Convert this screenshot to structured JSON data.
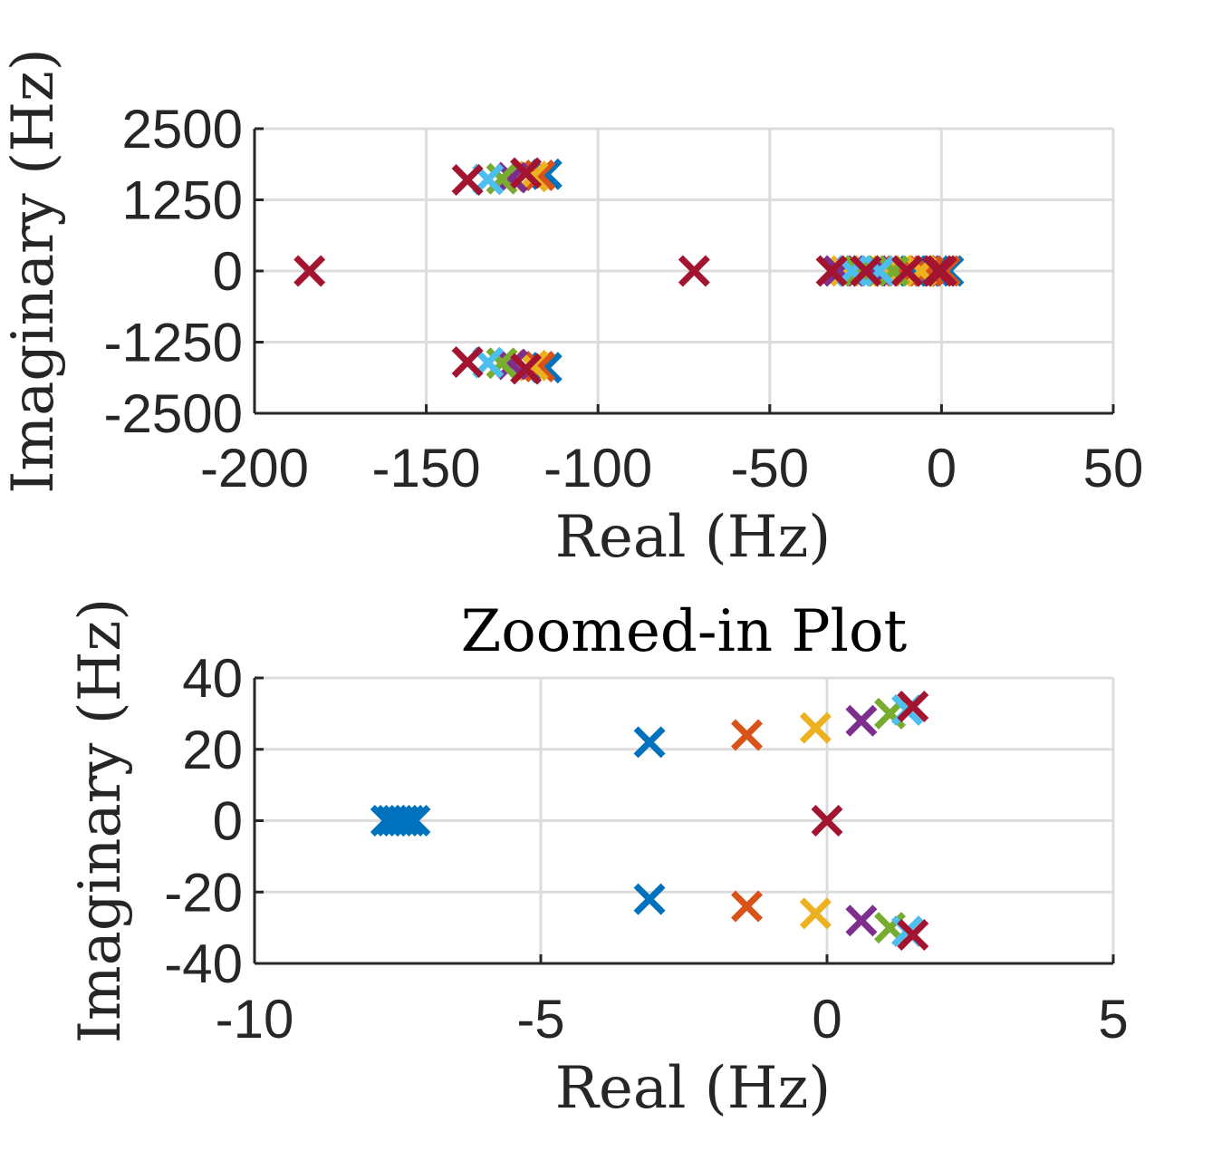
{
  "chart_data": [
    {
      "type": "scatter",
      "title": "",
      "xlabel": "Real (Hz)",
      "ylabel": "Imaginary (Hz)",
      "xlim": [
        -200,
        50
      ],
      "ylim": [
        -2500,
        2500
      ],
      "xticks": [
        -200,
        -150,
        -100,
        -50,
        0,
        50
      ],
      "xtick_labels": [
        "-200",
        "-150",
        "-100",
        "-50",
        "0",
        "50"
      ],
      "yticks": [
        -2500,
        -1250,
        0,
        1250,
        2500
      ],
      "ytick_labels": [
        "-2500",
        "-1250",
        "0",
        "1250",
        "2500"
      ],
      "grid": true,
      "marker": "x",
      "series": [
        {
          "color": "#0072BD",
          "points": [
            [
              -115,
              1700
            ],
            [
              -115,
              -1700
            ],
            [
              -8,
              0
            ],
            [
              -6,
              0
            ],
            [
              -4,
              0
            ],
            [
              -2,
              0
            ],
            [
              0,
              0
            ],
            [
              2,
              0
            ],
            [
              -22,
              0
            ],
            [
              -26,
              0
            ]
          ]
        },
        {
          "color": "#D95319",
          "points": [
            [
              -117,
              1680
            ],
            [
              -117,
              -1680
            ],
            [
              -12,
              0
            ],
            [
              -4,
              0
            ],
            [
              1,
              0
            ],
            [
              -24,
              0
            ]
          ]
        },
        {
          "color": "#EDB120",
          "points": [
            [
              -119,
              1660
            ],
            [
              -119,
              -1660
            ],
            [
              -16,
              0
            ],
            [
              -6,
              0
            ],
            [
              0,
              0
            ],
            [
              -28,
              0
            ]
          ]
        },
        {
          "color": "#7E2F8E",
          "points": [
            [
              -125,
              1640
            ],
            [
              -125,
              -1640
            ],
            [
              -20,
              0
            ],
            [
              -10,
              0
            ],
            [
              -30,
              0
            ]
          ]
        },
        {
          "color": "#77AC30",
          "points": [
            [
              -128,
              1620
            ],
            [
              -128,
              -1620
            ],
            [
              -14,
              0
            ],
            [
              -24,
              0
            ]
          ]
        },
        {
          "color": "#4DBEEE",
          "points": [
            [
              -132,
              1610
            ],
            [
              -132,
              -1610
            ],
            [
              -26,
              0
            ],
            [
              -18,
              0
            ]
          ]
        },
        {
          "color": "#A2142F",
          "points": [
            [
              -138,
              1600
            ],
            [
              -138,
              -1600
            ],
            [
              -121,
              1720
            ],
            [
              -121,
              -1720
            ],
            [
              -184,
              0
            ],
            [
              -72,
              0
            ],
            [
              -32,
              0
            ],
            [
              -22,
              0
            ],
            [
              -10,
              0
            ],
            [
              -1,
              0
            ],
            [
              0,
              0
            ]
          ]
        }
      ]
    },
    {
      "type": "scatter",
      "title": "Zoomed-in Plot",
      "xlabel": "Real (Hz)",
      "ylabel": "Imaginary (Hz)",
      "xlim": [
        -10,
        5
      ],
      "ylim": [
        -40,
        40
      ],
      "xticks": [
        -10,
        -5,
        0,
        5
      ],
      "xtick_labels": [
        "-10",
        "-5",
        "0",
        "5"
      ],
      "yticks": [
        -40,
        -20,
        0,
        20,
        40
      ],
      "ytick_labels": [
        "-40",
        "-20",
        "0",
        "20",
        "40"
      ],
      "grid": true,
      "marker": "x",
      "series": [
        {
          "color": "#0072BD",
          "points": [
            [
              -3.1,
              22
            ],
            [
              -3.1,
              -22
            ],
            [
              -7.7,
              0
            ],
            [
              -7.6,
              0
            ],
            [
              -7.5,
              0
            ],
            [
              -7.4,
              0
            ],
            [
              -7.3,
              0
            ],
            [
              -7.2,
              0
            ]
          ]
        },
        {
          "color": "#D95319",
          "points": [
            [
              -1.4,
              24
            ],
            [
              -1.4,
              -24
            ]
          ]
        },
        {
          "color": "#EDB120",
          "points": [
            [
              -0.2,
              26
            ],
            [
              -0.2,
              -26
            ]
          ]
        },
        {
          "color": "#7E2F8E",
          "points": [
            [
              0.6,
              28
            ],
            [
              0.6,
              -28
            ]
          ]
        },
        {
          "color": "#77AC30",
          "points": [
            [
              1.1,
              30
            ],
            [
              1.1,
              -30
            ]
          ]
        },
        {
          "color": "#4DBEEE",
          "points": [
            [
              1.4,
              31
            ],
            [
              1.4,
              -31
            ]
          ]
        },
        {
          "color": "#A2142F",
          "points": [
            [
              1.5,
              32
            ],
            [
              1.5,
              -32
            ],
            [
              0.0,
              0
            ]
          ]
        }
      ]
    }
  ]
}
